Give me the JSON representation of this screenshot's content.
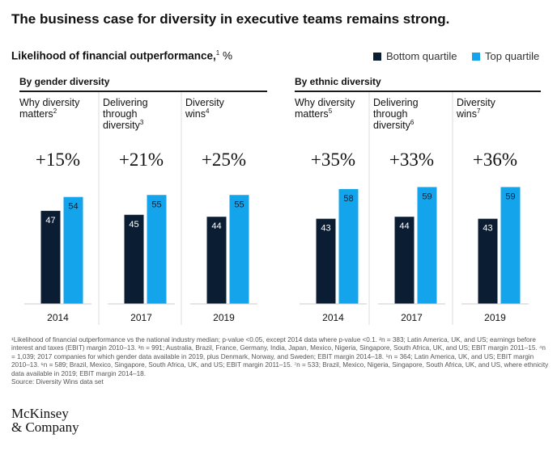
{
  "headline": "The business case for diversity in executive teams remains strong.",
  "subtitle": {
    "label": "Likelihood of financial outperformance,",
    "sup": "1",
    "unit": " %"
  },
  "legend": {
    "bottom": "Bottom quartile",
    "top": "Top quartile"
  },
  "colors": {
    "bottom_quartile": "#0b1d33",
    "top_quartile": "#13a4ec",
    "text": "#111111"
  },
  "groups": [
    {
      "title": "By gender diversity"
    },
    {
      "title": "By ethnic diversity"
    }
  ],
  "chart_data": {
    "type": "bar",
    "series_names": [
      "Bottom quartile",
      "Top quartile"
    ],
    "panels": [
      {
        "group": "By gender diversity",
        "label": [
          "Why diversity",
          "matters"
        ],
        "sup": "2",
        "uplift": "+15%",
        "year": "2014",
        "bottom": 47,
        "top": 54
      },
      {
        "group": "By gender diversity",
        "label": [
          "Delivering",
          "through",
          "diversity"
        ],
        "sup": "3",
        "uplift": "+21%",
        "year": "2017",
        "bottom": 45,
        "top": 55
      },
      {
        "group": "By gender diversity",
        "label": [
          "Diversity",
          "wins"
        ],
        "sup": "4",
        "uplift": "+25%",
        "year": "2019",
        "bottom": 44,
        "top": 55
      },
      {
        "group": "By ethnic diversity",
        "label": [
          "Why diversity",
          "matters"
        ],
        "sup": "5",
        "uplift": "+35%",
        "year": "2014",
        "bottom": 43,
        "top": 58
      },
      {
        "group": "By ethnic diversity",
        "label": [
          "Delivering",
          "through",
          "diversity"
        ],
        "sup": "6",
        "uplift": "+33%",
        "year": "2017",
        "bottom": 44,
        "top": 59
      },
      {
        "group": "By ethnic diversity",
        "label": [
          "Diversity",
          "wins"
        ],
        "sup": "7",
        "uplift": "+36%",
        "year": "2019",
        "bottom": 43,
        "top": 59
      }
    ]
  },
  "footnotes": [
    "¹Likelihood of financial outperformance vs the national industry median; p-value <0.05, except 2014 data where p-value <0.1. ²n = 383; Latin America, UK, and US; earnings before interest and taxes (EBIT) margin 2010–13. ³n = 991; Australia, Brazil, France, Germany, India, Japan, Mexico, Nigeria, Singapore, South Africa, UK, and US; EBIT margin 2011–15. ⁴n = 1,039; 2017 companies for which gender data available in 2019, plus Denmark, Norway, and Sweden; EBIT margin 2014–18. ⁵n = 364; Latin America, UK, and US; EBIT margin 2010–13. ⁶n = 589; Brazil, Mexico, Singapore, South Africa, UK, and US; EBIT margin 2011–15. ⁷n = 533; Brazil, Mexico, Nigeria, Singapore, South Africa, UK, and US, where ethnicity data available in 2019; EBIT margin 2014–18.",
    "Source: Diversity Wins data set"
  ],
  "logo": {
    "line1": "McKinsey",
    "line2": "& Company"
  }
}
